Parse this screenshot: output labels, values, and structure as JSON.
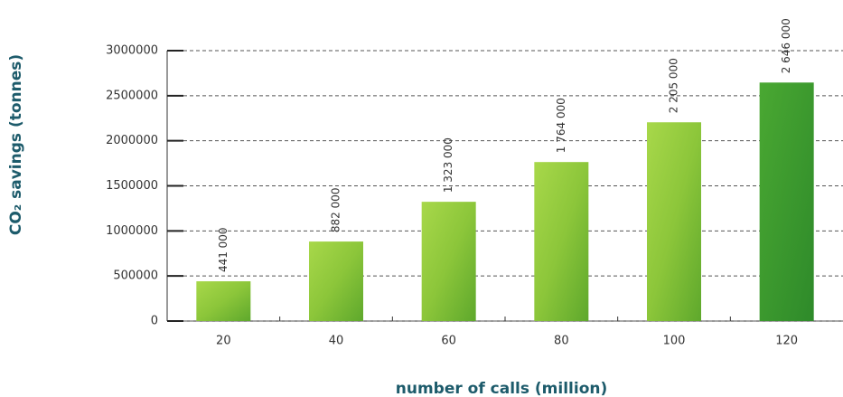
{
  "chart_data": {
    "type": "bar",
    "ylabel": "CO₂ savings (tonnes)",
    "xlabel": "number of calls (million)",
    "categories": [
      "20",
      "40",
      "60",
      "80",
      "100",
      "120"
    ],
    "values": [
      441000,
      882000,
      1323000,
      1764000,
      2205000,
      2646000
    ],
    "value_labels": [
      "441 000",
      "882 000",
      "1 323 000",
      "1 764 000",
      "2 205 000",
      "2 646 000"
    ],
    "color": "#7cc23a",
    "ylim": [
      0,
      3000000
    ],
    "yticks": [
      0,
      500000,
      1000000,
      1500000,
      2000000,
      2500000,
      3000000
    ],
    "grid": true
  }
}
